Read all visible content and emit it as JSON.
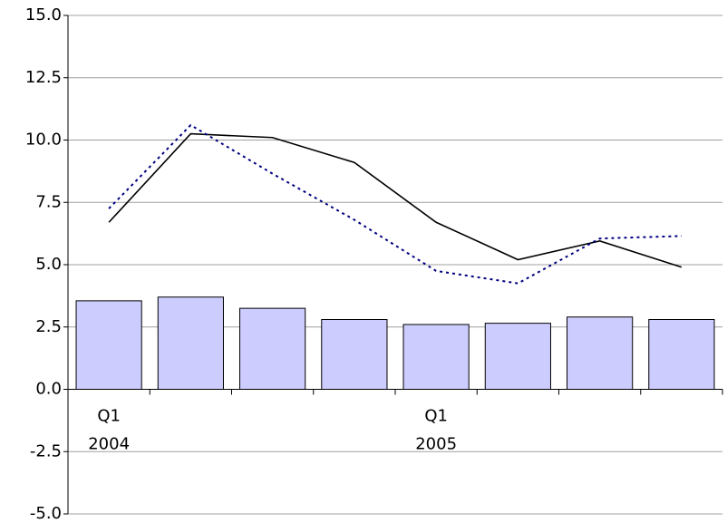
{
  "chart_data": {
    "type": "bar",
    "categories": [
      "Q1 2004",
      null,
      null,
      null,
      "Q1 2005",
      null,
      null,
      null
    ],
    "values": [
      3.55,
      3.7,
      3.25,
      2.8,
      2.6,
      2.65,
      2.9,
      2.8
    ],
    "color": "#ccccff",
    "lines": [
      {
        "color": "#000000",
        "style": "solid",
        "values": [
          6.7,
          10.25,
          10.1,
          9.1,
          6.7,
          5.2,
          5.95,
          4.9
        ]
      },
      {
        "color": "#000080",
        "style": "dotted",
        "values": [
          7.25,
          10.6,
          8.65,
          6.8,
          4.75,
          4.25,
          6.05,
          6.15
        ]
      }
    ],
    "ylim": [
      -5,
      15
    ],
    "yticks": [
      {
        "value": -5,
        "label": "-5.0"
      },
      -2.5,
      {
        "value": 0,
        "label": "0.0"
      },
      2.5,
      {
        "value": 5,
        "label": "5.0"
      },
      7.5,
      {
        "value": 10,
        "label": "10.0"
      },
      12.5,
      {
        "value": 15,
        "label": "15.0"
      }
    ],
    "grid": true
  }
}
